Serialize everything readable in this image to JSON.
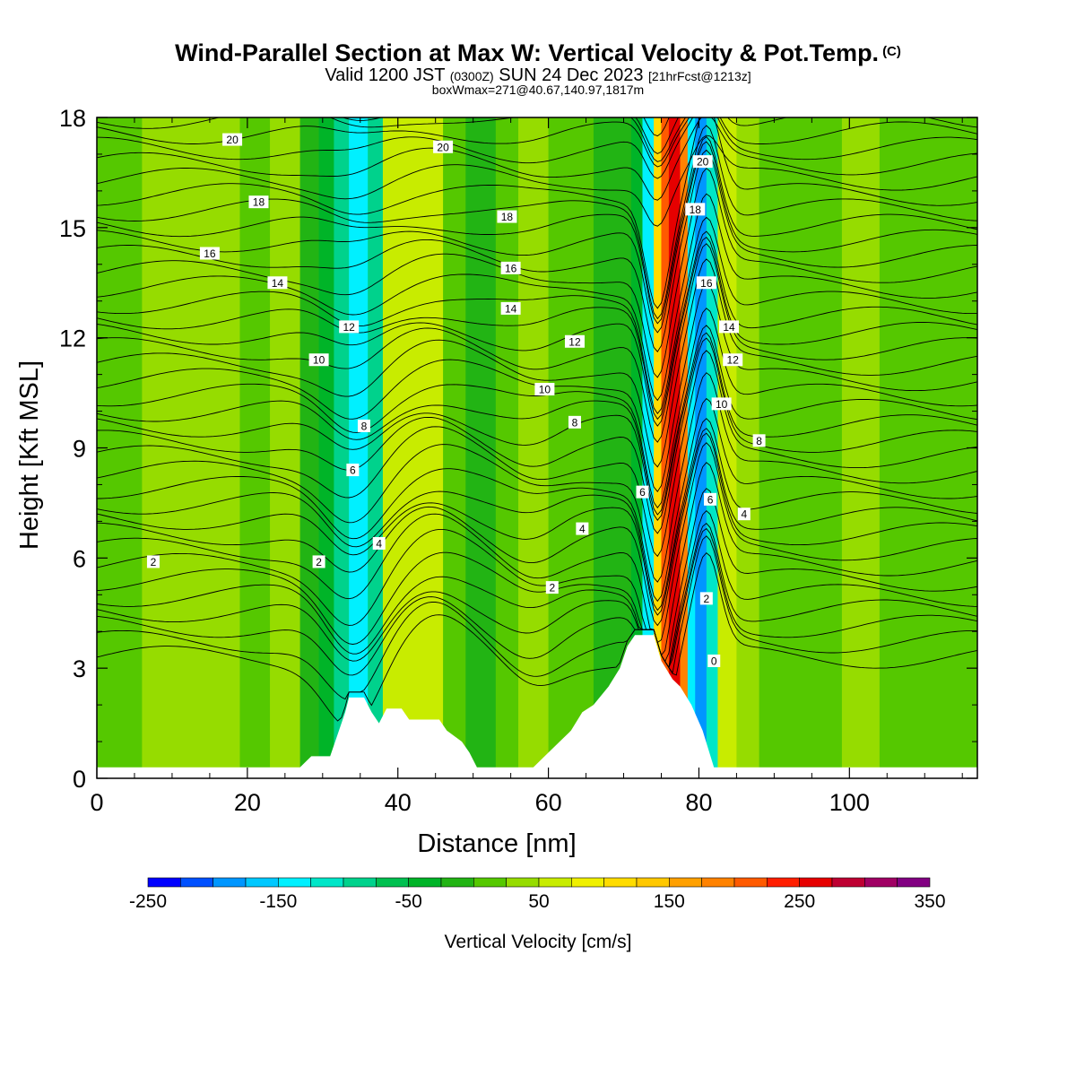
{
  "title": {
    "main": "Wind-Parallel Section at Max W: Vertical Velocity & Pot.Temp.",
    "copyright": "(C)",
    "valid_prefix": "Valid 1200 JST",
    "valid_utc": "(0300Z)",
    "valid_date": "SUN 24 Dec 2023",
    "forecast": "[21hrFcst@1213z]",
    "box": "boxWmax=271@40.67,140.97,1817m"
  },
  "chart_data": {
    "type": "heatmap",
    "xlabel": "Distance [nm]",
    "ylabel": "Height [Kft MSL]",
    "xlim": [
      0,
      117
    ],
    "ylim": [
      0,
      18
    ],
    "x_ticks": [
      0,
      20,
      40,
      60,
      80,
      100
    ],
    "y_ticks": [
      0,
      3,
      6,
      9,
      12,
      15,
      18
    ],
    "colorbar": {
      "title": "Vertical Velocity [cm/s]",
      "range": [
        -250,
        350
      ],
      "step": 25,
      "tick_values": [
        -250,
        -150,
        -50,
        50,
        150,
        250,
        350
      ],
      "tick_labels": [
        "-250",
        "-150",
        "-50",
        "50",
        "150",
        "250",
        "350"
      ],
      "colors": [
        "#0000ff",
        "#0050ff",
        "#0096ff",
        "#00c8ff",
        "#00f0ff",
        "#00e6c8",
        "#00d28c",
        "#00c050",
        "#00b428",
        "#22b414",
        "#55c800",
        "#96dc00",
        "#c8ec00",
        "#f0f000",
        "#ffdc00",
        "#ffc800",
        "#ffa000",
        "#ff8200",
        "#ff5a00",
        "#ff1e00",
        "#e60000",
        "#be0032",
        "#a00064",
        "#820082"
      ]
    },
    "velocity_bands": [
      {
        "x": [
          0,
          6
        ],
        "w": 10
      },
      {
        "x": [
          6,
          19
        ],
        "w": 30
      },
      {
        "x": [
          19,
          23
        ],
        "w": 10
      },
      {
        "x": [
          23,
          27
        ],
        "w": 25
      },
      {
        "x": [
          27,
          29.5
        ],
        "w": -5
      },
      {
        "x": [
          29.5,
          31.5
        ],
        "w": -50
      },
      {
        "x": [
          31.5,
          33.5
        ],
        "w": -80
      },
      {
        "x": [
          33.5,
          36
        ],
        "w": -130
      },
      {
        "x": [
          36,
          38
        ],
        "w": -80
      },
      {
        "x": [
          38,
          46
        ],
        "w": 50
      },
      {
        "x": [
          46,
          49
        ],
        "w": 10
      },
      {
        "x": [
          49,
          53
        ],
        "w": -20
      },
      {
        "x": [
          53,
          56
        ],
        "w": 15
      },
      {
        "x": [
          56,
          60
        ],
        "w": 45
      },
      {
        "x": [
          60,
          66
        ],
        "w": 20
      },
      {
        "x": [
          66,
          71
        ],
        "w": -5
      },
      {
        "x": [
          71,
          72.5
        ],
        "w": -50
      },
      {
        "x": [
          72.5,
          74
        ],
        "w": -150
      },
      {
        "x": [
          74,
          75
        ],
        "w": 100
      },
      {
        "x": [
          75,
          76
        ],
        "w": 210
      },
      {
        "x": [
          76,
          77.5
        ],
        "w": 270
      },
      {
        "x": [
          77.5,
          78.5
        ],
        "w": 190
      },
      {
        "x": [
          78.5,
          79.5
        ],
        "w": -150
      },
      {
        "x": [
          79.5,
          81
        ],
        "w": -200
      },
      {
        "x": [
          81,
          82.5
        ],
        "w": -120
      },
      {
        "x": [
          82.5,
          85
        ],
        "w": 70
      },
      {
        "x": [
          85,
          88
        ],
        "w": 40
      },
      {
        "x": [
          88,
          99
        ],
        "w": 15
      },
      {
        "x": [
          99,
          104
        ],
        "w": 40
      },
      {
        "x": [
          104,
          117
        ],
        "w": 10
      }
    ],
    "terrain": [
      [
        0,
        0.3
      ],
      [
        27,
        0.3
      ],
      [
        28.5,
        0.6
      ],
      [
        31,
        0.6
      ],
      [
        32,
        1.2
      ],
      [
        33,
        1.8
      ],
      [
        33.5,
        2.2
      ],
      [
        35.5,
        2.2
      ],
      [
        36.5,
        1.8
      ],
      [
        37.5,
        1.5
      ],
      [
        38.5,
        1.9
      ],
      [
        40.5,
        1.9
      ],
      [
        41.5,
        1.6
      ],
      [
        45.5,
        1.6
      ],
      [
        46.5,
        1.3
      ],
      [
        48.5,
        1.0
      ],
      [
        49.5,
        0.7
      ],
      [
        50.5,
        0.3
      ],
      [
        58,
        0.3
      ],
      [
        59,
        0.5
      ],
      [
        61,
        0.9
      ],
      [
        63,
        1.3
      ],
      [
        64.5,
        1.8
      ],
      [
        66,
        2.0
      ],
      [
        68,
        2.5
      ],
      [
        69.5,
        3.0
      ],
      [
        70.5,
        3.6
      ],
      [
        71.5,
        3.9
      ],
      [
        74,
        3.9
      ],
      [
        75,
        3.2
      ],
      [
        76.5,
        2.7
      ],
      [
        77.5,
        2.5
      ],
      [
        79,
        2.0
      ],
      [
        80.5,
        1.3
      ],
      [
        82,
        0.3
      ],
      [
        117,
        0.3
      ]
    ],
    "theta_contour_labels": [
      {
        "x": 18,
        "y": 17.4,
        "text": "20"
      },
      {
        "x": 46,
        "y": 17.2,
        "text": "20"
      },
      {
        "x": 80.5,
        "y": 16.8,
        "text": "20"
      },
      {
        "x": 21.5,
        "y": 15.7,
        "text": "18"
      },
      {
        "x": 54.5,
        "y": 15.3,
        "text": "18"
      },
      {
        "x": 79.5,
        "y": 15.5,
        "text": "18"
      },
      {
        "x": 15,
        "y": 14.3,
        "text": "16"
      },
      {
        "x": 55,
        "y": 13.9,
        "text": "16"
      },
      {
        "x": 81,
        "y": 13.5,
        "text": "16"
      },
      {
        "x": 24,
        "y": 13.5,
        "text": "14"
      },
      {
        "x": 55,
        "y": 12.8,
        "text": "14"
      },
      {
        "x": 84,
        "y": 12.3,
        "text": "14"
      },
      {
        "x": 33.5,
        "y": 12.3,
        "text": "12"
      },
      {
        "x": 63.5,
        "y": 11.9,
        "text": "12"
      },
      {
        "x": 84.5,
        "y": 11.4,
        "text": "12"
      },
      {
        "x": 29.5,
        "y": 11.4,
        "text": "10"
      },
      {
        "x": 59.5,
        "y": 10.6,
        "text": "10"
      },
      {
        "x": 83,
        "y": 10.2,
        "text": "10"
      },
      {
        "x": 35.5,
        "y": 9.6,
        "text": "8"
      },
      {
        "x": 63.5,
        "y": 9.7,
        "text": "8"
      },
      {
        "x": 88,
        "y": 9.2,
        "text": "8"
      },
      {
        "x": 34,
        "y": 8.4,
        "text": "6"
      },
      {
        "x": 72.5,
        "y": 7.8,
        "text": "6"
      },
      {
        "x": 81.5,
        "y": 7.6,
        "text": "6"
      },
      {
        "x": 37.5,
        "y": 6.4,
        "text": "4"
      },
      {
        "x": 64.5,
        "y": 6.8,
        "text": "4"
      },
      {
        "x": 86,
        "y": 7.2,
        "text": "4"
      },
      {
        "x": 7.5,
        "y": 5.9,
        "text": "2"
      },
      {
        "x": 29.5,
        "y": 5.9,
        "text": "2"
      },
      {
        "x": 60.5,
        "y": 5.2,
        "text": "2"
      },
      {
        "x": 81,
        "y": 4.9,
        "text": "2"
      },
      {
        "x": 82,
        "y": 3.2,
        "text": "0"
      }
    ]
  }
}
